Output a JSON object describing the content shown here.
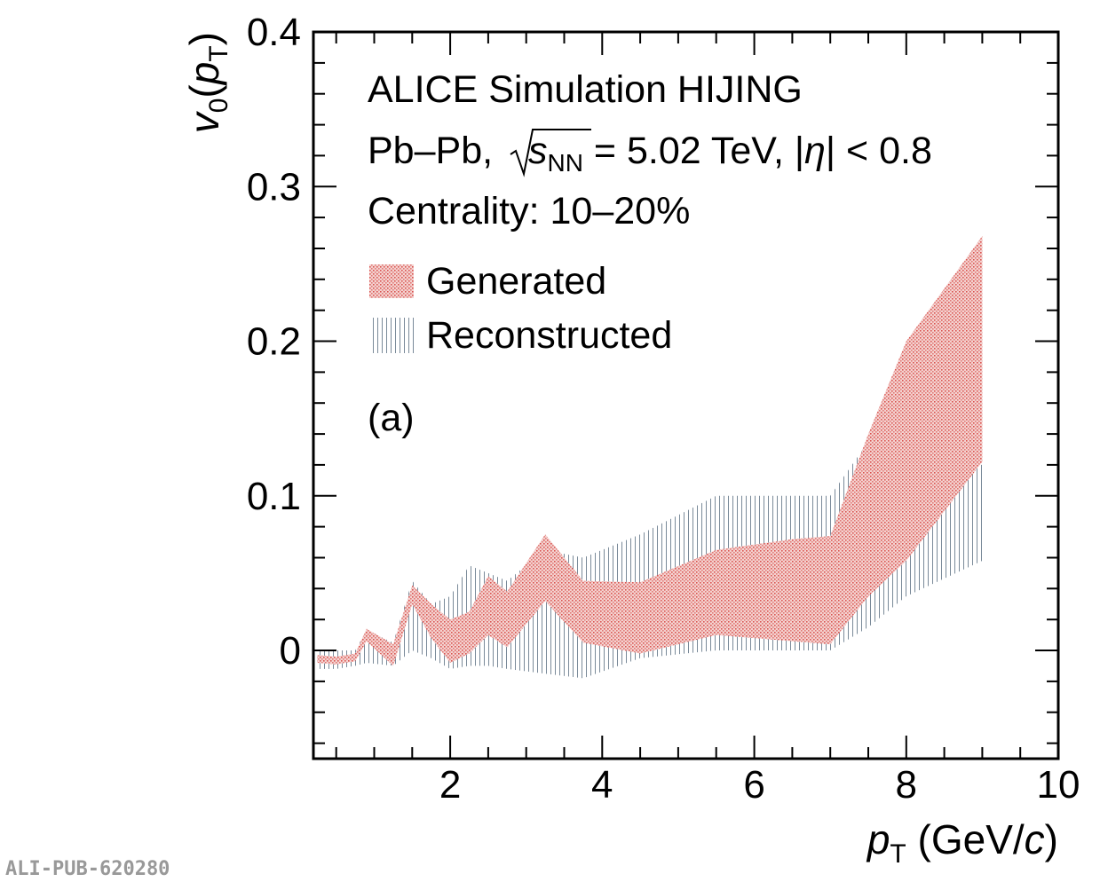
{
  "chart_data": {
    "type": "area",
    "title": "",
    "xlabel_main": "p",
    "xlabel_sub": "T",
    "xlabel_unit_open": " (GeV/",
    "xlabel_unit_c": "c",
    "xlabel_unit_close": ")",
    "ylabel_main": "v",
    "ylabel_sub": "0",
    "ylabel_open": "(",
    "ylabel_p": "p",
    "ylabel_p_sub": "T",
    "ylabel_close": ")",
    "xlim": [
      0.2,
      10
    ],
    "ylim": [
      -0.07,
      0.4
    ],
    "x_ticks": [
      2,
      4,
      6,
      8,
      10
    ],
    "x_tick_labels": [
      "2",
      "4",
      "6",
      "8",
      "10"
    ],
    "y_ticks": [
      0,
      0.1,
      0.2,
      0.3,
      0.4
    ],
    "y_tick_labels": [
      "0",
      "0.1",
      "0.2",
      "0.3",
      "0.4"
    ],
    "annotations": {
      "experiment": "ALICE Simulation HIJING",
      "system_prefix": "Pb–Pb, ",
      "sqrt_s": "s",
      "sqrt_s_sub": "NN",
      "system_suffix": " = 5.02 TeV, |",
      "eta": "η",
      "eta_suffix": "| < 0.8",
      "centrality": "Centrality: 10–20%",
      "panel": "(a)"
    },
    "legend": [
      {
        "label": "Generated",
        "color": "#d9534f",
        "pattern": "dots"
      },
      {
        "label": "Reconstructed",
        "color": "#7a8a99",
        "pattern": "vertical-lines"
      }
    ],
    "series": [
      {
        "name": "Reconstructed",
        "color": "#7a8a99",
        "x": [
          0.25,
          0.5,
          0.75,
          0.9,
          1.25,
          1.5,
          1.75,
          2.0,
          2.25,
          2.5,
          2.75,
          3.25,
          3.75,
          4.5,
          5.5,
          6.5,
          7.0,
          7.5,
          8.0,
          9.0
        ],
        "upper": [
          0.0,
          0.0,
          0.0,
          0.013,
          0.005,
          0.045,
          0.03,
          0.035,
          0.055,
          0.05,
          0.045,
          0.065,
          0.06,
          0.075,
          0.1,
          0.1,
          0.1,
          0.135,
          0.12,
          0.12
        ],
        "lower": [
          -0.012,
          -0.012,
          -0.01,
          -0.008,
          -0.01,
          0.0,
          -0.005,
          -0.012,
          -0.01,
          -0.01,
          -0.012,
          -0.015,
          -0.018,
          -0.005,
          0.0,
          0.0,
          0.0,
          0.015,
          0.035,
          0.058
        ]
      },
      {
        "name": "Generated",
        "color": "#d9534f",
        "x": [
          0.25,
          0.5,
          0.75,
          0.9,
          1.25,
          1.5,
          1.75,
          2.0,
          2.25,
          2.5,
          2.75,
          3.25,
          3.75,
          4.5,
          5.5,
          6.5,
          7.0,
          7.5,
          8.0,
          9.0
        ],
        "upper": [
          -0.003,
          -0.004,
          -0.002,
          0.014,
          0.004,
          0.042,
          0.03,
          0.02,
          0.025,
          0.048,
          0.038,
          0.075,
          0.045,
          0.044,
          0.065,
          0.072,
          0.074,
          0.14,
          0.2,
          0.268
        ],
        "lower": [
          -0.008,
          -0.009,
          -0.007,
          0.006,
          -0.01,
          0.03,
          0.008,
          -0.008,
          -0.002,
          0.01,
          0.002,
          0.032,
          0.005,
          -0.002,
          0.01,
          0.006,
          0.004,
          0.035,
          0.058,
          0.122
        ]
      }
    ]
  },
  "footer_tag": "ALI-PUB-620280"
}
